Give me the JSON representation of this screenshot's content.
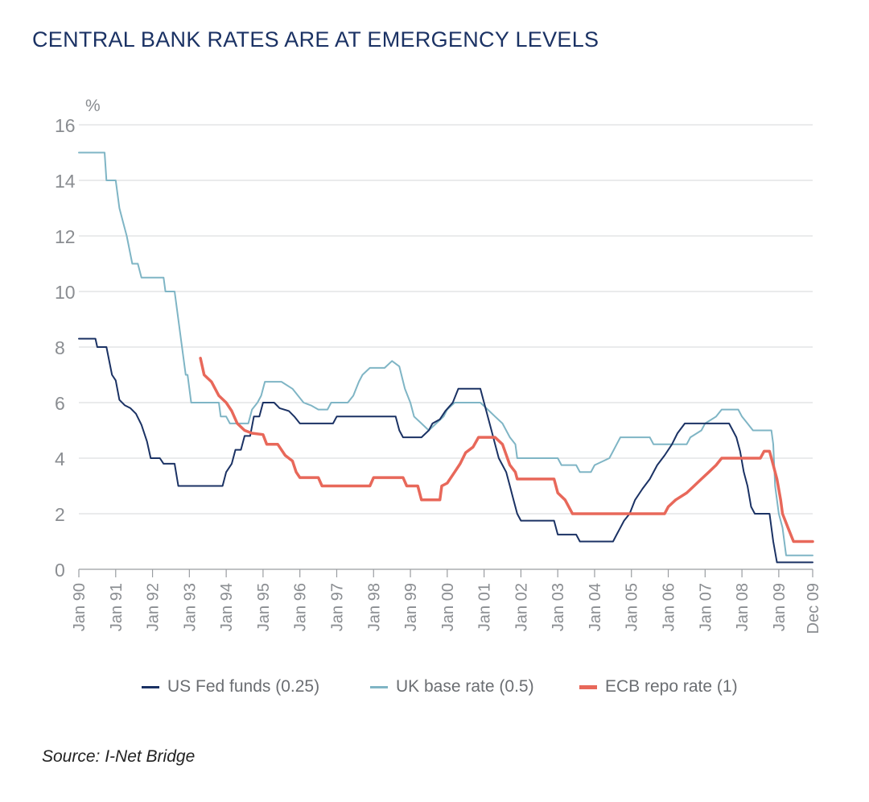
{
  "chart_data": {
    "type": "line",
    "title": "CENTRAL BANK RATES ARE AT EMERGENCY LEVELS",
    "ylabel": "%",
    "ylim": [
      0,
      16
    ],
    "yticks": [
      0,
      2,
      4,
      6,
      8,
      10,
      12,
      14,
      16
    ],
    "xlim": [
      1990.0,
      2009.92
    ],
    "xticks": [
      {
        "x": 1990,
        "label": "Jan 90"
      },
      {
        "x": 1991,
        "label": "Jan 91"
      },
      {
        "x": 1992,
        "label": "Jan 92"
      },
      {
        "x": 1993,
        "label": "Jan 93"
      },
      {
        "x": 1994,
        "label": "Jan 94"
      },
      {
        "x": 1995,
        "label": "Jan 95"
      },
      {
        "x": 1996,
        "label": "Jan 96"
      },
      {
        "x": 1997,
        "label": "Jan 97"
      },
      {
        "x": 1998,
        "label": "Jan 98"
      },
      {
        "x": 1999,
        "label": "Jan 99"
      },
      {
        "x": 2000,
        "label": "Jan 00"
      },
      {
        "x": 2001,
        "label": "Jan 01"
      },
      {
        "x": 2002,
        "label": "Jan 02"
      },
      {
        "x": 2003,
        "label": "Jan 03"
      },
      {
        "x": 2004,
        "label": "Jan 04"
      },
      {
        "x": 2005,
        "label": "Jan 05"
      },
      {
        "x": 2006,
        "label": "Jan 06"
      },
      {
        "x": 2007,
        "label": "Jan 07"
      },
      {
        "x": 2008,
        "label": "Jan 08"
      },
      {
        "x": 2009,
        "label": "Jan 09"
      },
      {
        "x": 2009.92,
        "label": "Dec 09"
      }
    ],
    "grid": true,
    "legend_position": "bottom",
    "series": [
      {
        "name": "US Fed funds (0.25)",
        "color": "#1b3264",
        "points": [
          [
            1990.0,
            8.3
          ],
          [
            1990.45,
            8.3
          ],
          [
            1990.5,
            8.0
          ],
          [
            1990.75,
            8.0
          ],
          [
            1990.9,
            7.0
          ],
          [
            1991.0,
            6.8
          ],
          [
            1991.1,
            6.1
          ],
          [
            1991.25,
            5.9
          ],
          [
            1991.4,
            5.8
          ],
          [
            1991.55,
            5.6
          ],
          [
            1991.7,
            5.2
          ],
          [
            1991.85,
            4.6
          ],
          [
            1991.95,
            4.0
          ],
          [
            1992.2,
            4.0
          ],
          [
            1992.3,
            3.8
          ],
          [
            1992.6,
            3.8
          ],
          [
            1992.7,
            3.0
          ],
          [
            1993.0,
            3.0
          ],
          [
            1993.5,
            3.0
          ],
          [
            1993.9,
            3.0
          ],
          [
            1994.0,
            3.5
          ],
          [
            1994.15,
            3.8
          ],
          [
            1994.25,
            4.3
          ],
          [
            1994.4,
            4.3
          ],
          [
            1994.5,
            4.8
          ],
          [
            1994.65,
            4.8
          ],
          [
            1994.75,
            5.5
          ],
          [
            1994.9,
            5.5
          ],
          [
            1995.0,
            6.0
          ],
          [
            1995.3,
            6.0
          ],
          [
            1995.45,
            5.8
          ],
          [
            1995.7,
            5.7
          ],
          [
            1995.85,
            5.5
          ],
          [
            1996.0,
            5.25
          ],
          [
            1996.5,
            5.25
          ],
          [
            1996.9,
            5.25
          ],
          [
            1997.0,
            5.5
          ],
          [
            1997.5,
            5.5
          ],
          [
            1998.6,
            5.5
          ],
          [
            1998.7,
            5.0
          ],
          [
            1998.8,
            4.75
          ],
          [
            1999.3,
            4.75
          ],
          [
            1999.5,
            5.0
          ],
          [
            1999.6,
            5.25
          ],
          [
            1999.8,
            5.4
          ],
          [
            1999.95,
            5.7
          ],
          [
            2000.15,
            6.0
          ],
          [
            2000.3,
            6.5
          ],
          [
            2000.9,
            6.5
          ],
          [
            2001.0,
            6.0
          ],
          [
            2001.1,
            5.5
          ],
          [
            2001.2,
            5.0
          ],
          [
            2001.3,
            4.5
          ],
          [
            2001.4,
            4.0
          ],
          [
            2001.5,
            3.75
          ],
          [
            2001.6,
            3.5
          ],
          [
            2001.7,
            3.0
          ],
          [
            2001.8,
            2.5
          ],
          [
            2001.9,
            2.0
          ],
          [
            2002.0,
            1.75
          ],
          [
            2002.9,
            1.75
          ],
          [
            2003.0,
            1.25
          ],
          [
            2003.5,
            1.25
          ],
          [
            2003.6,
            1.0
          ],
          [
            2004.5,
            1.0
          ],
          [
            2004.6,
            1.25
          ],
          [
            2004.7,
            1.5
          ],
          [
            2004.8,
            1.75
          ],
          [
            2004.95,
            2.0
          ],
          [
            2005.1,
            2.5
          ],
          [
            2005.3,
            2.9
          ],
          [
            2005.5,
            3.25
          ],
          [
            2005.7,
            3.75
          ],
          [
            2005.9,
            4.1
          ],
          [
            2006.1,
            4.5
          ],
          [
            2006.25,
            4.9
          ],
          [
            2006.45,
            5.25
          ],
          [
            2007.65,
            5.25
          ],
          [
            2007.75,
            5.0
          ],
          [
            2007.85,
            4.75
          ],
          [
            2007.95,
            4.25
          ],
          [
            2008.05,
            3.5
          ],
          [
            2008.15,
            3.0
          ],
          [
            2008.25,
            2.25
          ],
          [
            2008.35,
            2.0
          ],
          [
            2008.75,
            2.0
          ],
          [
            2008.85,
            1.0
          ],
          [
            2008.95,
            0.25
          ],
          [
            2009.92,
            0.25
          ]
        ]
      },
      {
        "name": "UK base rate (0.5)",
        "color": "#7fb5c5",
        "points": [
          [
            1990.0,
            15.0
          ],
          [
            1990.7,
            15.0
          ],
          [
            1990.75,
            14.0
          ],
          [
            1991.0,
            14.0
          ],
          [
            1991.1,
            13.0
          ],
          [
            1991.2,
            12.5
          ],
          [
            1991.3,
            12.0
          ],
          [
            1991.45,
            11.0
          ],
          [
            1991.6,
            11.0
          ],
          [
            1991.7,
            10.5
          ],
          [
            1992.3,
            10.5
          ],
          [
            1992.35,
            10.0
          ],
          [
            1992.6,
            10.0
          ],
          [
            1992.7,
            9.0
          ],
          [
            1992.8,
            8.0
          ],
          [
            1992.9,
            7.0
          ],
          [
            1992.95,
            7.0
          ],
          [
            1993.05,
            6.0
          ],
          [
            1993.8,
            6.0
          ],
          [
            1993.85,
            5.5
          ],
          [
            1994.0,
            5.5
          ],
          [
            1994.1,
            5.25
          ],
          [
            1994.6,
            5.25
          ],
          [
            1994.7,
            5.75
          ],
          [
            1994.85,
            6.0
          ],
          [
            1994.95,
            6.25
          ],
          [
            1995.05,
            6.75
          ],
          [
            1995.5,
            6.75
          ],
          [
            1995.8,
            6.5
          ],
          [
            1995.95,
            6.25
          ],
          [
            1996.1,
            6.0
          ],
          [
            1996.3,
            5.9
          ],
          [
            1996.5,
            5.75
          ],
          [
            1996.75,
            5.75
          ],
          [
            1996.85,
            6.0
          ],
          [
            1997.3,
            6.0
          ],
          [
            1997.45,
            6.25
          ],
          [
            1997.6,
            6.75
          ],
          [
            1997.7,
            7.0
          ],
          [
            1997.9,
            7.25
          ],
          [
            1998.3,
            7.25
          ],
          [
            1998.5,
            7.5
          ],
          [
            1998.7,
            7.3
          ],
          [
            1998.85,
            6.5
          ],
          [
            1999.0,
            6.0
          ],
          [
            1999.1,
            5.5
          ],
          [
            1999.3,
            5.25
          ],
          [
            1999.5,
            5.0
          ],
          [
            1999.7,
            5.25
          ],
          [
            1999.9,
            5.5
          ],
          [
            2000.0,
            5.75
          ],
          [
            2000.2,
            6.0
          ],
          [
            2000.9,
            6.0
          ],
          [
            2001.1,
            5.75
          ],
          [
            2001.3,
            5.5
          ],
          [
            2001.5,
            5.25
          ],
          [
            2001.7,
            4.75
          ],
          [
            2001.85,
            4.5
          ],
          [
            2001.9,
            4.0
          ],
          [
            2003.0,
            4.0
          ],
          [
            2003.1,
            3.75
          ],
          [
            2003.5,
            3.75
          ],
          [
            2003.6,
            3.5
          ],
          [
            2003.9,
            3.5
          ],
          [
            2004.0,
            3.75
          ],
          [
            2004.4,
            4.0
          ],
          [
            2004.5,
            4.25
          ],
          [
            2004.6,
            4.5
          ],
          [
            2004.7,
            4.75
          ],
          [
            2005.5,
            4.75
          ],
          [
            2005.6,
            4.5
          ],
          [
            2006.5,
            4.5
          ],
          [
            2006.6,
            4.75
          ],
          [
            2006.9,
            5.0
          ],
          [
            2007.0,
            5.25
          ],
          [
            2007.3,
            5.5
          ],
          [
            2007.45,
            5.75
          ],
          [
            2007.9,
            5.75
          ],
          [
            2008.0,
            5.5
          ],
          [
            2008.15,
            5.25
          ],
          [
            2008.3,
            5.0
          ],
          [
            2008.8,
            5.0
          ],
          [
            2008.85,
            4.5
          ],
          [
            2008.9,
            3.0
          ],
          [
            2009.0,
            2.0
          ],
          [
            2009.1,
            1.5
          ],
          [
            2009.2,
            0.5
          ],
          [
            2009.92,
            0.5
          ]
        ]
      },
      {
        "name": "ECB repo rate (1)",
        "color": "#e8685a",
        "points": [
          [
            1993.3,
            7.6
          ],
          [
            1993.4,
            7.0
          ],
          [
            1993.6,
            6.75
          ],
          [
            1993.8,
            6.25
          ],
          [
            1994.0,
            6.0
          ],
          [
            1994.15,
            5.7
          ],
          [
            1994.3,
            5.25
          ],
          [
            1994.5,
            5.0
          ],
          [
            1994.7,
            4.9
          ],
          [
            1995.0,
            4.85
          ],
          [
            1995.1,
            4.5
          ],
          [
            1995.4,
            4.5
          ],
          [
            1995.6,
            4.1
          ],
          [
            1995.8,
            3.9
          ],
          [
            1995.9,
            3.5
          ],
          [
            1996.0,
            3.3
          ],
          [
            1996.5,
            3.3
          ],
          [
            1996.6,
            3.0
          ],
          [
            1997.0,
            3.0
          ],
          [
            1997.9,
            3.0
          ],
          [
            1998.0,
            3.3
          ],
          [
            1998.8,
            3.3
          ],
          [
            1998.9,
            3.0
          ],
          [
            1999.2,
            3.0
          ],
          [
            1999.3,
            2.5
          ],
          [
            1999.8,
            2.5
          ],
          [
            1999.85,
            3.0
          ],
          [
            2000.0,
            3.1
          ],
          [
            2000.2,
            3.5
          ],
          [
            2000.35,
            3.8
          ],
          [
            2000.5,
            4.2
          ],
          [
            2000.7,
            4.4
          ],
          [
            2000.85,
            4.75
          ],
          [
            2001.3,
            4.75
          ],
          [
            2001.5,
            4.5
          ],
          [
            2001.7,
            3.75
          ],
          [
            2001.85,
            3.5
          ],
          [
            2001.9,
            3.25
          ],
          [
            2002.9,
            3.25
          ],
          [
            2003.0,
            2.75
          ],
          [
            2003.2,
            2.5
          ],
          [
            2003.4,
            2.0
          ],
          [
            2004.0,
            2.0
          ],
          [
            2005.9,
            2.0
          ],
          [
            2006.0,
            2.25
          ],
          [
            2006.2,
            2.5
          ],
          [
            2006.5,
            2.75
          ],
          [
            2006.7,
            3.0
          ],
          [
            2006.9,
            3.25
          ],
          [
            2007.1,
            3.5
          ],
          [
            2007.3,
            3.75
          ],
          [
            2007.45,
            4.0
          ],
          [
            2008.5,
            4.0
          ],
          [
            2008.6,
            4.25
          ],
          [
            2008.75,
            4.25
          ],
          [
            2008.85,
            3.75
          ],
          [
            2008.95,
            3.25
          ],
          [
            2009.05,
            2.5
          ],
          [
            2009.1,
            2.0
          ],
          [
            2009.25,
            1.5
          ],
          [
            2009.4,
            1.0
          ],
          [
            2009.92,
            1.0
          ]
        ]
      }
    ]
  },
  "source": "Source: I-Net Bridge"
}
